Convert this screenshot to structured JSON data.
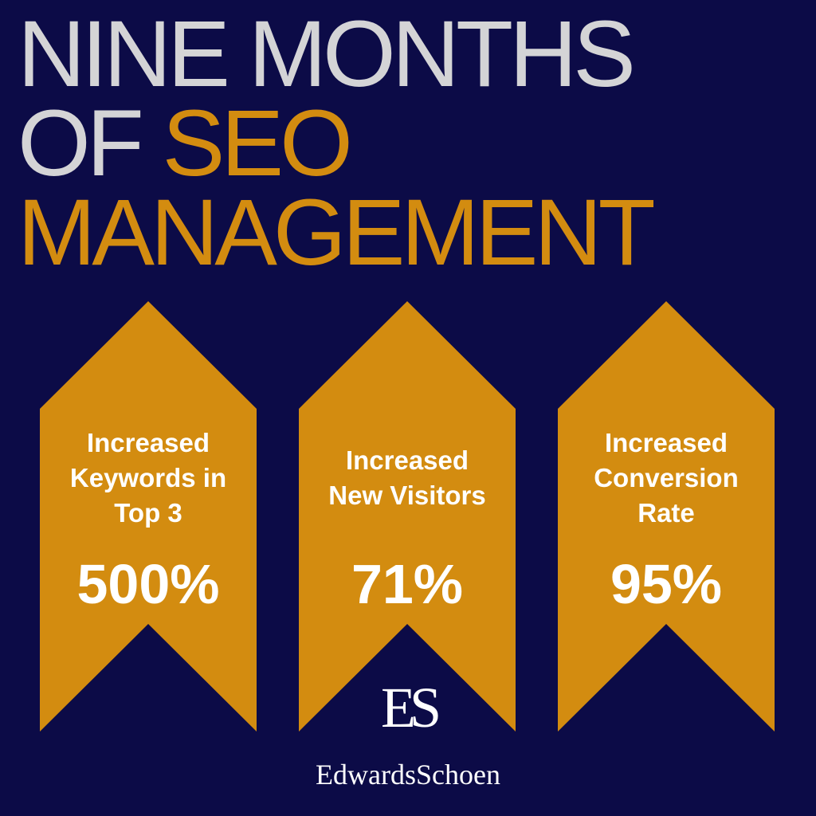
{
  "headline": {
    "line1": "NINE MONTHS",
    "line2_prefix": "OF ",
    "line2_highlight": "SEO",
    "line3": "MANAGEMENT"
  },
  "stats": [
    {
      "label_lines": [
        "Increased",
        "Keywords in",
        "Top 3"
      ],
      "value": "500%"
    },
    {
      "label_lines": [
        "Increased",
        "New Visitors"
      ],
      "value": "71%"
    },
    {
      "label_lines": [
        "Increased",
        "Conversion",
        "Rate"
      ],
      "value": "95%"
    }
  ],
  "logo": {
    "monogram": "ES",
    "name": "EdwardsSchoen"
  },
  "colors": {
    "background": "#0c0b47",
    "accent": "#d38c10",
    "headline_gray": "#d4d4d6",
    "text_white": "#ffffff"
  }
}
